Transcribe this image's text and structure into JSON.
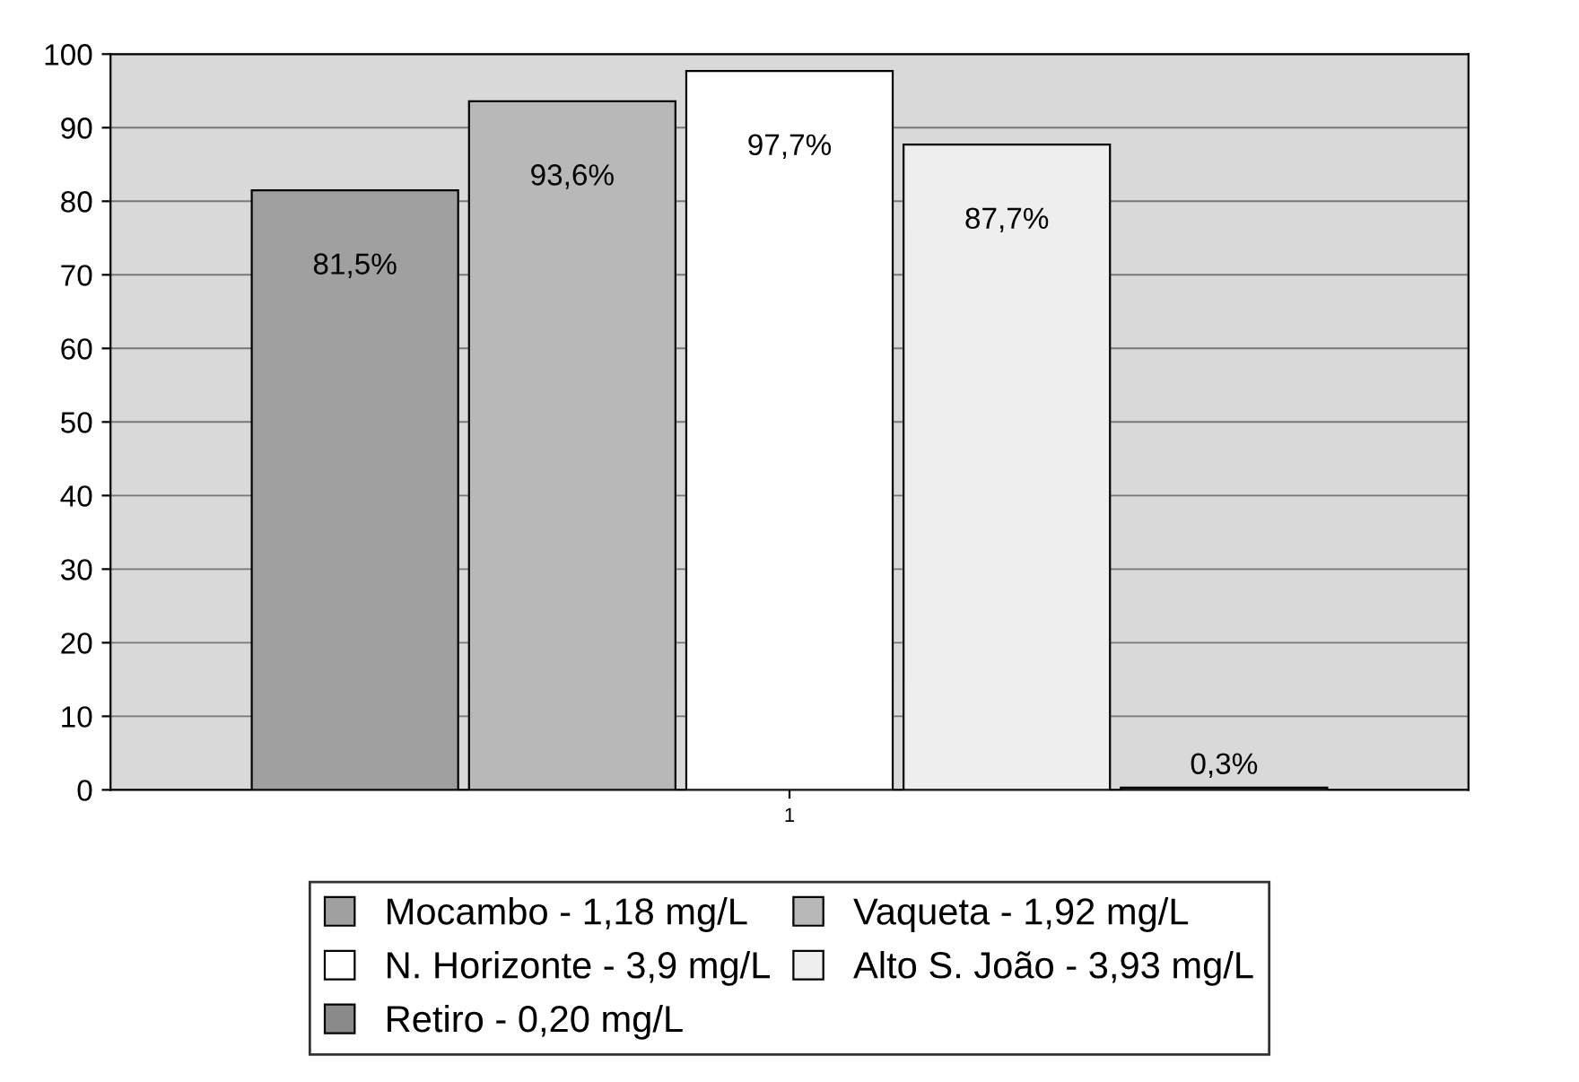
{
  "chart_data": {
    "type": "bar",
    "categories": [
      "1"
    ],
    "series": [
      {
        "name": "Mocambo - 1,18 mg/L",
        "color": "#a0a0a0",
        "values": [
          81.5
        ],
        "value_labels": [
          "81,5%"
        ]
      },
      {
        "name": "Vaqueta - 1,92 mg/L",
        "color": "#b8b8b8",
        "values": [
          93.6
        ],
        "value_labels": [
          "93,6%"
        ]
      },
      {
        "name": "N. Horizonte - 3,9 mg/L",
        "color": "#ffffff",
        "values": [
          97.7
        ],
        "value_labels": [
          "97,7%"
        ]
      },
      {
        "name": "Alto S. João - 3,93 mg/L",
        "color": "#eeeeee",
        "values": [
          87.7
        ],
        "value_labels": [
          "87,7%"
        ]
      },
      {
        "name": "Retiro - 0,20 mg/L",
        "color": "#8a8a8a",
        "values": [
          0.3
        ],
        "value_labels": [
          "0,3%"
        ]
      }
    ],
    "ylim": [
      0,
      100
    ],
    "yticks": [
      0,
      10,
      20,
      30,
      40,
      50,
      60,
      70,
      80,
      90,
      100
    ],
    "grid": "y",
    "legend": "bottom"
  }
}
